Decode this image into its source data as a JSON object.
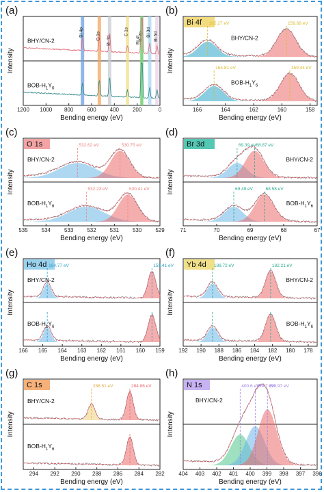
{
  "chart_data": [
    {
      "id": "a",
      "type": "line",
      "panel_label": "(a)",
      "xlabel": "Bending energy (eV)",
      "ylabel": "Intensity",
      "xlim": [
        1200,
        0
      ],
      "xticks": [
        1200,
        1000,
        800,
        600,
        400,
        200,
        0
      ],
      "samples": [
        "BHY/CN-2",
        "BOB-H1Y6"
      ],
      "series_colors": [
        "#e0707e",
        "#3d8e8e"
      ],
      "bands": [
        {
          "label": "Bi 4p",
          "x": 680,
          "color": "#6a9fe0"
        },
        {
          "label": "O 1s",
          "x": 532,
          "color": "#f2a65e"
        },
        {
          "label": "Bi 4d",
          "x": 442,
          "color": "#c8cdd4"
        },
        {
          "label": "C 1s",
          "x": 285,
          "color": "#f0e08a"
        },
        {
          "label": "Bi 3p",
          "x": 160,
          "color": "#7ed27e"
        },
        {
          "label": "Bi 4f",
          "x": 159,
          "color": "#7ed27e"
        },
        {
          "label": "Bi 3d",
          "x": 90,
          "color": "#a8d8f0"
        },
        {
          "label": "Bi 5d",
          "x": 26,
          "color": "#e8d1e6"
        }
      ]
    },
    {
      "id": "b",
      "type": "line",
      "panel_label": "(b)",
      "element": "Bi 4f",
      "element_color": "#f3dc80",
      "xlabel": "Bending energy (eV)",
      "ylabel": "Intensity",
      "xlim": [
        167,
        157.5
      ],
      "xticks": [
        166,
        164,
        162,
        160,
        158
      ],
      "top": {
        "sample": "BHY/CN-2",
        "peaks": [
          {
            "center": 165.27,
            "label": "165.27 eV",
            "color": "#2ba6c8",
            "annotation_color": "#d9b928"
          },
          {
            "center": 159.68,
            "label": "159.68 eV",
            "color": "#ec6b6b",
            "annotation_color": "#d9b928"
          }
        ]
      },
      "bottom": {
        "sample": "BOB-H1Y6",
        "peaks": [
          {
            "center": 164.81,
            "label": "164.81 eV",
            "color": "#2ba6c8",
            "annotation_color": "#d9b928"
          },
          {
            "center": 159.44,
            "label": "159.44 eV",
            "color": "#ec6b6b",
            "annotation_color": "#d9b928"
          }
        ]
      }
    },
    {
      "id": "c",
      "type": "line",
      "panel_label": "(c)",
      "element": "O 1s",
      "element_color": "#f2a3a3",
      "xlabel": "Bending energy (eV)",
      "ylabel": "Intensity",
      "xlim": [
        535,
        529
      ],
      "xticks": [
        535,
        534,
        533,
        532,
        531,
        530,
        529
      ],
      "top": {
        "sample": "BHY/CN-2",
        "peaks": [
          {
            "center": 532.62,
            "label": "532.62 eV",
            "color": "#6cb7e8",
            "annotation_color": "#ec8080"
          },
          {
            "center": 530.75,
            "label": "530.75 eV",
            "color": "#ec6b6b",
            "annotation_color": "#ec8080"
          }
        ]
      },
      "bottom": {
        "sample": "BOB-H1Y6",
        "peaks": [
          {
            "center": 532.23,
            "label": "532.23 eV",
            "color": "#6cb7e8",
            "annotation_color": "#ec8080"
          },
          {
            "center": 530.41,
            "label": "530.41 eV",
            "color": "#ec6b6b",
            "annotation_color": "#ec8080"
          }
        ]
      }
    },
    {
      "id": "d",
      "type": "line",
      "panel_label": "(d)",
      "element": "Br 3d",
      "element_color": "#54c8b4",
      "xlabel": "Bending energy (eV)",
      "ylabel": "Intensity",
      "xlim": [
        71,
        67
      ],
      "xticks": [
        71,
        70,
        69,
        68,
        67
      ],
      "top": {
        "sample": "BHY/CN-2",
        "peaks": [
          {
            "center": 69.39,
            "label": "69.39 eV",
            "color": "#6cb7e8",
            "annotation_color": "#2aa98f"
          },
          {
            "center": 68.87,
            "label": "68.87 eV",
            "color": "#ec6b6b",
            "annotation_color": "#2aa98f"
          }
        ]
      },
      "bottom": {
        "sample": "BOB-H1Y6",
        "peaks": [
          {
            "center": 69.49,
            "label": "69.49 eV",
            "color": "#6cb7e8",
            "annotation_color": "#2aa98f"
          },
          {
            "center": 68.58,
            "label": "68.58 eV",
            "color": "#ec6b6b",
            "annotation_color": "#2aa98f"
          }
        ]
      }
    },
    {
      "id": "e",
      "type": "line",
      "panel_label": "(e)",
      "element": "Ho 4d",
      "element_color": "#9ad2ee",
      "xlabel": "Bending energy (eV)",
      "ylabel": "Intensity",
      "xlim": [
        166,
        159
      ],
      "xticks": [
        166,
        165,
        164,
        163,
        162,
        161,
        160,
        159
      ],
      "top": {
        "sample": "BHY/CN-2",
        "peaks": [
          {
            "center": 164.77,
            "label": "164.77 eV",
            "color": "#6cb7e8",
            "annotation_color": "#2b9fc9"
          },
          {
            "center": 159.41,
            "label": "159.41 eV",
            "color": "#ec6b6b",
            "annotation_color": "#2b9fc9"
          }
        ]
      },
      "bottom": {
        "sample": "BOB-H1Y6",
        "peaks": [
          {
            "center": 164.77,
            "label": "",
            "color": "#6cb7e8",
            "annotation_color": "#2b9fc9"
          },
          {
            "center": 159.41,
            "label": "",
            "color": "#ec6b6b",
            "annotation_color": "#2b9fc9"
          }
        ]
      }
    },
    {
      "id": "f",
      "type": "line",
      "panel_label": "(f)",
      "element": "Yb 4d",
      "element_color": "#f0e089",
      "xlabel": "Bending energy (eV)",
      "ylabel": "Intensity",
      "xlim": [
        192,
        177
      ],
      "xticks": [
        192,
        190,
        188,
        186,
        184,
        182,
        180,
        178
      ],
      "top": {
        "sample": "BHY/CN-2",
        "peaks": [
          {
            "center": 188.72,
            "label": "188.72 eV",
            "color": "#6cb7e8",
            "annotation_color": "#2aa98f"
          },
          {
            "center": 182.21,
            "label": "182.21 eV",
            "color": "#ec6b6b",
            "annotation_color": "#2aa98f"
          }
        ]
      },
      "bottom": {
        "sample": "BOB-H1Y6",
        "peaks": [
          {
            "center": 188.72,
            "label": "",
            "color": "#6cb7e8",
            "annotation_color": "#2aa98f"
          },
          {
            "center": 182.21,
            "label": "",
            "color": "#ec6b6b",
            "annotation_color": "#2aa98f"
          }
        ]
      }
    },
    {
      "id": "g",
      "type": "line",
      "panel_label": "(g)",
      "element": "C 1s",
      "element_color": "#f6b07a",
      "xlabel": "Bending energy (eV)",
      "ylabel": "Intensity",
      "xlim": [
        295,
        282
      ],
      "xticks": [
        294,
        292,
        290,
        288,
        286,
        284,
        282
      ],
      "top": {
        "sample": "BHY/CN-2",
        "peaks": [
          {
            "center": 288.51,
            "label": "288.51 eV",
            "color": "#f0d07a",
            "annotation_color": "#e0a840"
          },
          {
            "center": 284.86,
            "label": "284.86 eV",
            "color": "#ec6b6b",
            "annotation_color": "#ec6b6b"
          }
        ]
      },
      "bottom": {
        "sample": "BOB-H1Y6",
        "peaks": [
          {
            "center": 284.86,
            "label": "",
            "color": "#ec6b6b",
            "annotation_color": "#ec6b6b"
          }
        ]
      }
    },
    {
      "id": "h",
      "type": "line",
      "panel_label": "(h)",
      "element": "N 1s",
      "element_color": "#c7b2f2",
      "xlabel": "Bending energy (eV)",
      "ylabel": "Intensity",
      "xlim": [
        404,
        396
      ],
      "xticks": [
        404,
        403,
        402,
        401,
        400,
        399,
        398,
        397,
        396
      ],
      "top": {
        "sample": "BHY/CN-2",
        "peaks": [
          {
            "center": 400.6,
            "label": "400.6 eV",
            "color": "#4fc78a",
            "annotation_color": "#9a80e6"
          },
          {
            "center": 399.7,
            "label": "399.7 eV",
            "color": "#6cb7e8",
            "annotation_color": "#9a80e6"
          },
          {
            "center": 398.97,
            "label": "398.97 eV",
            "color": "#ec6b6b",
            "annotation_color": "#9a80e6"
          }
        ]
      }
    }
  ]
}
